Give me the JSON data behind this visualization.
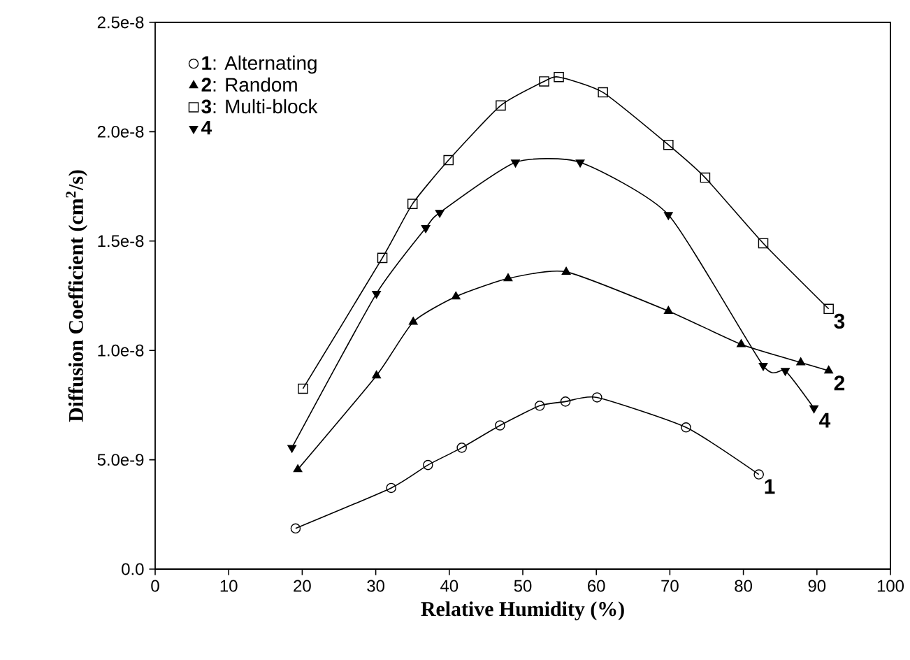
{
  "chart_data": {
    "type": "line",
    "xlabel": "Relative Humidity (%)",
    "ylabel": "Diffusion Coefficient (cm$^{2}$/s)",
    "xlim": [
      0,
      100
    ],
    "xticks": [
      0,
      10,
      20,
      30,
      40,
      50,
      60,
      70,
      80,
      90,
      100
    ],
    "ylim": [
      0,
      2.5e-08
    ],
    "yticks": [
      {
        "value": 0,
        "label": "0.0"
      },
      {
        "value": 5e-09,
        "label": "5.0e-9"
      },
      {
        "value": 1e-08,
        "label": "1.0e-8"
      },
      {
        "value": 1.5e-08,
        "label": "1.5e-8"
      },
      {
        "value": 2e-08,
        "label": "2.0e-8"
      },
      {
        "value": 2.5e-08,
        "label": "2.5e-8"
      }
    ],
    "grid": false,
    "legend": "top left",
    "series": [
      {
        "name": "**1**: Alternating",
        "color": "#000000",
        "marker": "circle",
        "x": [
          19.1,
          32.1,
          37.1,
          41.7,
          46.9,
          52.3,
          55.8,
          60.1,
          72.2,
          82.1
        ],
        "values": [
          1.86e-09,
          3.71e-09,
          4.76e-09,
          5.55e-09,
          6.57e-09,
          7.47e-09,
          7.66e-09,
          7.85e-09,
          6.48e-09,
          4.33e-09
        ]
      },
      {
        "name": "**2**: Random",
        "color": "#000000",
        "marker": "triangle",
        "x": [
          19.4,
          30.1,
          35.1,
          40.9,
          48.0,
          55.9,
          69.8,
          79.7,
          87.8,
          91.6
        ],
        "values": [
          4.56e-09,
          8.85e-09,
          1.13e-08,
          1.246e-08,
          1.329e-08,
          1.359e-08,
          1.18e-08,
          1.028e-08,
          9.45e-09,
          9.07e-09
        ]
      },
      {
        "name": "**3**: Multi-block",
        "color": "#000000",
        "marker": "square",
        "x": [
          20.1,
          30.9,
          35.0,
          39.9,
          47.0,
          52.9,
          54.9,
          60.9,
          69.8,
          74.8,
          82.7,
          91.6
        ],
        "values": [
          8.25e-09,
          1.423e-08,
          1.67e-08,
          1.87e-08,
          2.12e-08,
          2.23e-08,
          2.25e-08,
          2.18e-08,
          1.94e-08,
          1.79e-08,
          1.49e-08,
          1.19e-08
        ]
      },
      {
        "name": "**4**",
        "color": "#000000",
        "marker": "triangle-down",
        "x": [
          18.6,
          30.1,
          36.8,
          38.7,
          49.0,
          57.8,
          69.8,
          82.7,
          85.7,
          89.6
        ],
        "values": [
          5.55e-09,
          1.26e-08,
          1.56e-08,
          1.63e-08,
          1.86e-08,
          1.86e-08,
          1.62e-08,
          9.3e-09,
          9.07e-09,
          7.36e-09
        ]
      }
    ],
    "annotations": [
      {
        "text": "1",
        "x": 82.1,
        "y": 4.33e-09
      },
      {
        "text": "2",
        "x": 91.6,
        "y": 9.07e-09
      },
      {
        "text": "3",
        "x": 91.6,
        "y": 1.19e-08
      },
      {
        "text": "4",
        "x": 89.6,
        "y": 7.36e-09
      }
    ]
  }
}
